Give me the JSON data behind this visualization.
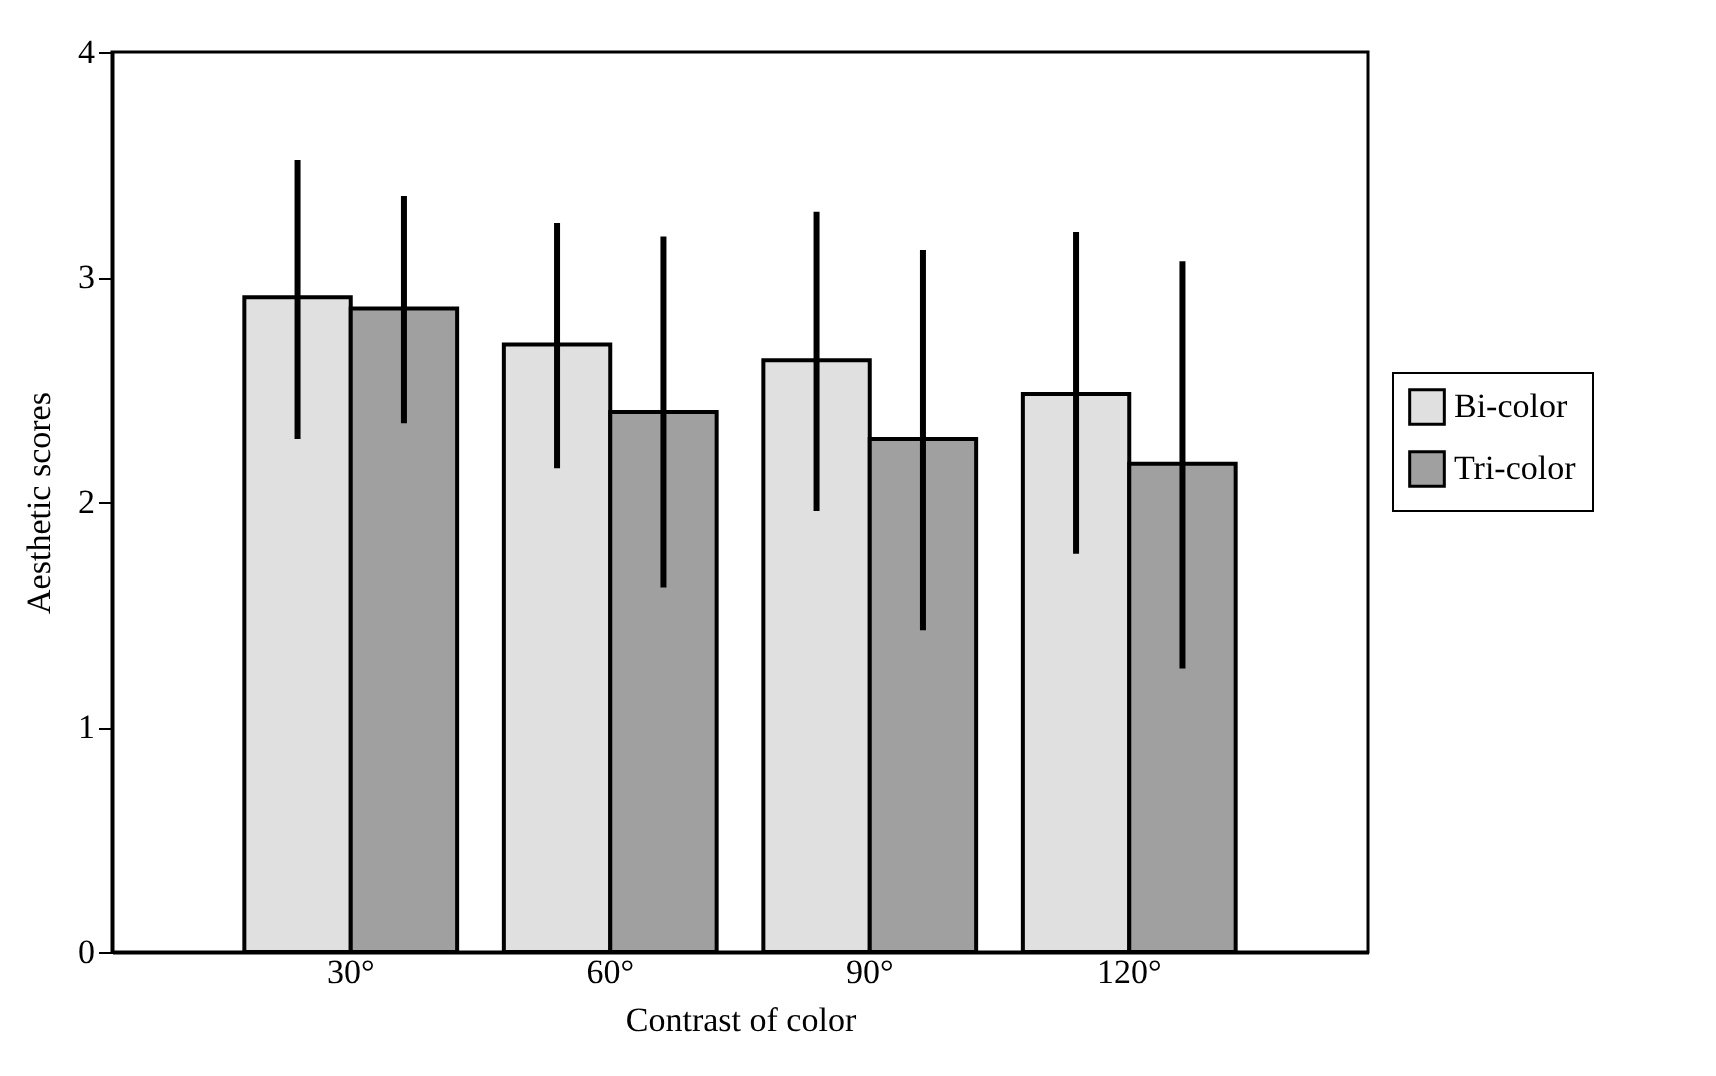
{
  "chart_data": {
    "type": "bar",
    "xlabel": "Contrast of color",
    "ylabel": "Aesthetic scores",
    "categories": [
      "30°",
      "60°",
      "90°",
      "120°"
    ],
    "ylim": [
      0,
      4
    ],
    "yticks": [
      0,
      1,
      2,
      3,
      4
    ],
    "legend": "right",
    "grid": false,
    "series": [
      {
        "name": "Bi-color",
        "color": "#e0e0e0",
        "values": [
          2.91,
          2.7,
          2.63,
          2.48
        ],
        "errors": [
          [
            2.28,
            3.52
          ],
          [
            2.15,
            3.24
          ],
          [
            1.96,
            3.29
          ],
          [
            1.77,
            3.2
          ]
        ]
      },
      {
        "name": "Tri-color",
        "color": "#a0a0a0",
        "values": [
          2.86,
          2.4,
          2.28,
          2.17
        ],
        "errors": [
          [
            2.35,
            3.36
          ],
          [
            1.62,
            3.18
          ],
          [
            1.43,
            3.12
          ],
          [
            1.26,
            3.07
          ]
        ]
      }
    ]
  }
}
